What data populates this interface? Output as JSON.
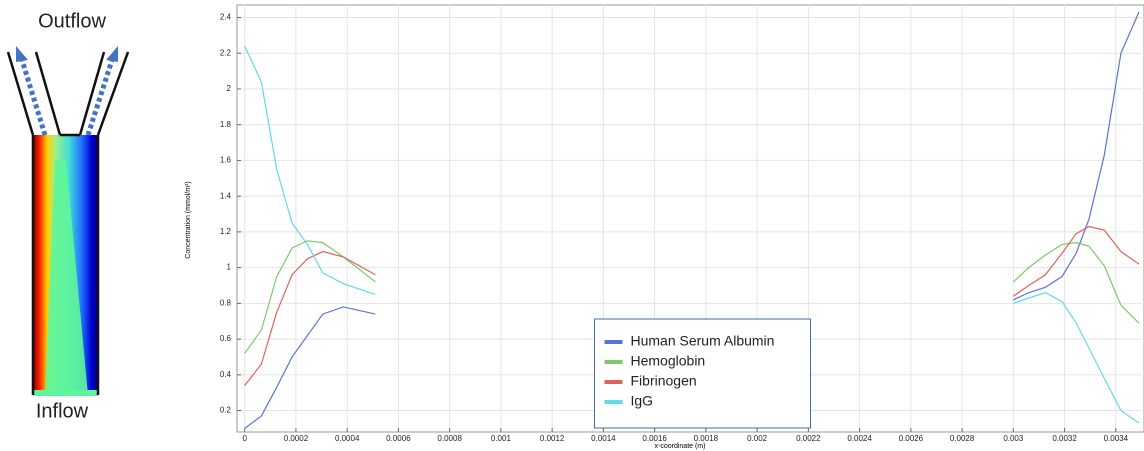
{
  "diagram": {
    "outflow": "Outflow",
    "inflow": "Inflow"
  },
  "chart_data": {
    "type": "line",
    "x_label": "x-coordinate (m)",
    "y_label": "Concentration (mmol/m³)",
    "x": [
      0,
      6.5e-05,
      0.000125,
      0.000185,
      0.000245,
      0.000305,
      0.000385,
      0.00051,
      0.0017,
      0.003,
      0.00306,
      0.003125,
      0.00319,
      0.003245,
      0.003295,
      0.003355,
      0.00342,
      0.00349
    ],
    "series": [
      {
        "name": "Human Serum Albumin",
        "color": "#5b74d9",
        "values": [
          0.1,
          0.17,
          0.33,
          0.5,
          0.62,
          0.74,
          0.78,
          0.74,
          null,
          0.82,
          0.86,
          0.89,
          0.95,
          1.08,
          1.27,
          1.63,
          2.2,
          2.43
        ]
      },
      {
        "name": "Hemoglobin",
        "color": "#7cc96b",
        "values": [
          0.52,
          0.65,
          0.95,
          1.11,
          1.15,
          1.14,
          1.06,
          0.92,
          null,
          0.92,
          1.0,
          1.07,
          1.13,
          1.14,
          1.12,
          1.01,
          0.79,
          0.69
        ]
      },
      {
        "name": "Fibrinogen",
        "color": "#e0605a",
        "values": [
          0.34,
          0.46,
          0.75,
          0.96,
          1.05,
          1.09,
          1.06,
          0.96,
          null,
          0.84,
          0.9,
          0.96,
          1.08,
          1.19,
          1.23,
          1.21,
          1.09,
          1.02
        ]
      },
      {
        "name": "IgG",
        "color": "#5fdbe6",
        "values": [
          2.24,
          2.04,
          1.55,
          1.25,
          1.13,
          0.97,
          0.91,
          0.85,
          null,
          0.8,
          0.83,
          0.86,
          0.81,
          0.69,
          0.55,
          0.38,
          0.2,
          0.13
        ]
      }
    ],
    "xlim": [
      -3e-05,
      0.00351
    ],
    "ylim": [
      0.08,
      2.47
    ],
    "xticks": [
      0,
      0.0002,
      0.0004,
      0.0006,
      0.0008,
      0.001,
      0.0012,
      0.0014,
      0.0016,
      0.0018,
      0.002,
      0.0022,
      0.0024,
      0.0026,
      0.0028,
      0.003,
      0.0032,
      0.0034
    ],
    "yticks": [
      0.2,
      0.4,
      0.6,
      0.8,
      1,
      1.2,
      1.4,
      1.6,
      1.8,
      2,
      2.2,
      2.4
    ],
    "grid": true,
    "legend": "bottom-center"
  }
}
